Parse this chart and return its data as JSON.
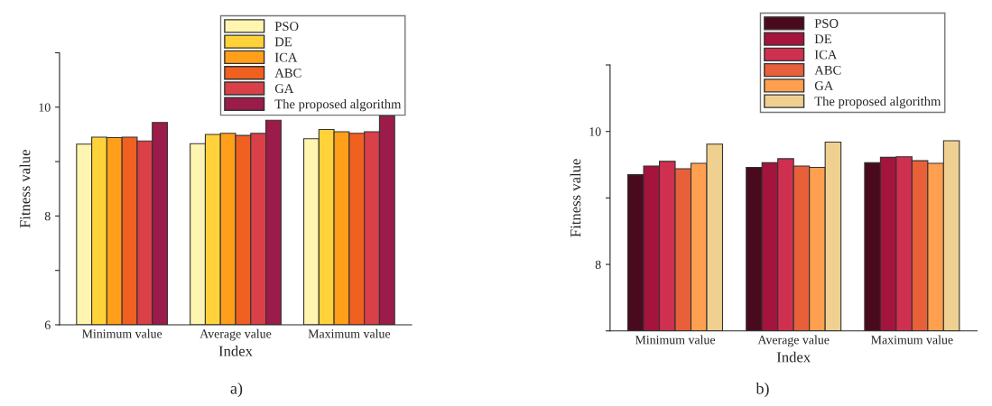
{
  "chart_data": [
    {
      "type": "bar",
      "xlabel": "Index",
      "ylabel": "Fitness value",
      "categories": [
        "Minimum value",
        "Average value",
        "Maximum value"
      ],
      "series": [
        {
          "name": "PSO",
          "color": "#fff5b0",
          "values": [
            9.32,
            9.33,
            9.42
          ]
        },
        {
          "name": "DE",
          "color": "#ffd23a",
          "values": [
            9.45,
            9.5,
            9.59
          ]
        },
        {
          "name": "ICA",
          "color": "#ff9f1a",
          "values": [
            9.44,
            9.52,
            9.55
          ]
        },
        {
          "name": "ABC",
          "color": "#f06020",
          "values": [
            9.45,
            9.48,
            9.52
          ]
        },
        {
          "name": "GA",
          "color": "#d94048",
          "values": [
            9.38,
            9.52,
            9.55
          ]
        },
        {
          "name": "The proposed algorithm",
          "color": "#9b1b4a",
          "values": [
            9.72,
            9.76,
            9.84
          ]
        }
      ],
      "ylim": [
        6,
        11
      ],
      "yticks": [
        6,
        {
          "value": 7,
          "label": null
        },
        8,
        {
          "value": 9,
          "label": null
        },
        10,
        {
          "value": 11,
          "label": null
        }
      ],
      "grid": false,
      "legend": "top right",
      "annotations": [
        "a)"
      ]
    },
    {
      "type": "bar",
      "xlabel": "Index",
      "ylabel": "Fitness value",
      "categories": [
        "Minimum value",
        "Average value",
        "Maximum value"
      ],
      "series": [
        {
          "name": "PSO",
          "color": "#4a0a1e",
          "values": [
            9.35,
            9.46,
            9.53
          ]
        },
        {
          "name": "DE",
          "color": "#a5143c",
          "values": [
            9.48,
            9.53,
            9.61
          ]
        },
        {
          "name": "ICA",
          "color": "#d03050",
          "values": [
            9.55,
            9.59,
            9.62
          ]
        },
        {
          "name": "ABC",
          "color": "#e8603a",
          "values": [
            9.44,
            9.48,
            9.56
          ]
        },
        {
          "name": "GA",
          "color": "#ffa050",
          "values": [
            9.52,
            9.46,
            9.52
          ]
        },
        {
          "name": "The proposed algorithm",
          "color": "#f0d090",
          "values": [
            9.81,
            9.84,
            9.86
          ]
        }
      ],
      "ylim": [
        7,
        11
      ],
      "yticks": [
        {
          "value": 7,
          "label": null
        },
        8,
        {
          "value": 9,
          "label": null
        },
        10,
        {
          "value": 11,
          "label": null
        }
      ],
      "grid": false,
      "legend": "top right",
      "annotations": [
        "b)"
      ]
    }
  ]
}
